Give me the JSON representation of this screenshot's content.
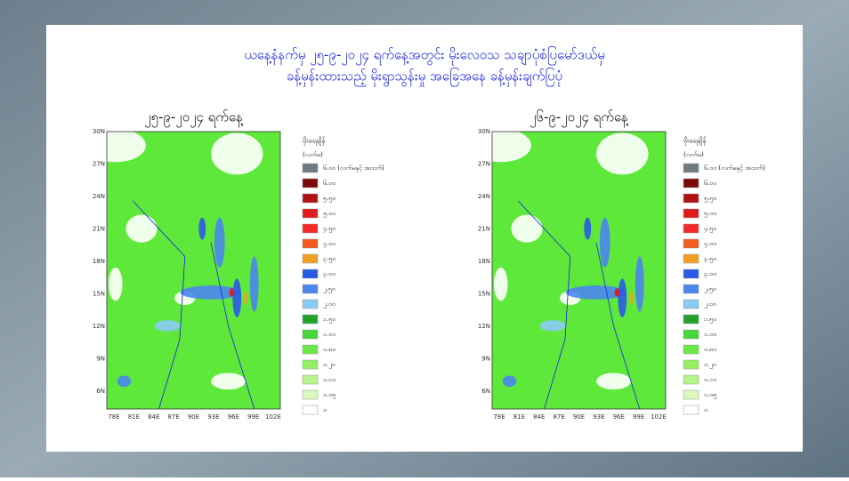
{
  "header": {
    "title_lines": [
      "ယနေ့နံနက်မှ ၂၅-၉-၂၀၂၄ ရက်နေ့အတွင်း မိုးလေဝသ သချာပုံစံပြမော်ဒယ်မှ",
      "ခန့်မှန်းထားသည့် မိုးရွာသွန်းမှု အခြေအနေ ခန့်မှန်းချက်ပြပုံ"
    ]
  },
  "maps": [
    {
      "title": "၂၅-၉-၂၀၂၄ ရက်နေ့"
    },
    {
      "title": "၂၆-၉-၂၀၂၄ ရက်နေ့"
    }
  ],
  "lat_ticks": [
    "30N",
    "27N",
    "24N",
    "21N",
    "18N",
    "15N",
    "12N",
    "9N",
    "6N"
  ],
  "lon_ticks": [
    "78E",
    "81E",
    "84E",
    "87E",
    "90E",
    "93E",
    "96E",
    "99E",
    "102E"
  ],
  "legend": {
    "title": "မိုးရေချိန်",
    "unit": "(လက်မ)",
    "items": [
      {
        "label": "၆.၀၀ (လက်မနှင့် အထက်)",
        "color": "#6e7b7f"
      },
      {
        "label": "၆.၀၀",
        "color": "#7a0a0a"
      },
      {
        "label": "၅.၅၀",
        "color": "#b01212"
      },
      {
        "label": "၅.၀၀",
        "color": "#e01a1a"
      },
      {
        "label": "၄.၅၀",
        "color": "#f22a2a"
      },
      {
        "label": "၄.၀၀",
        "color": "#f25a1e"
      },
      {
        "label": "၃.၅၀",
        "color": "#f2a024"
      },
      {
        "label": "၃.၀၀",
        "color": "#2a5be8"
      },
      {
        "label": "၂.၅၀",
        "color": "#4a86ee"
      },
      {
        "label": "၂.၀၀",
        "color": "#8ccaf6"
      },
      {
        "label": "၁.၅၀",
        "color": "#23a12a"
      },
      {
        "label": "၁.၀၀",
        "color": "#45d63a"
      },
      {
        "label": "၀.၈၀",
        "color": "#6ae848"
      },
      {
        "label": "၀.၂၀",
        "color": "#96f066"
      },
      {
        "label": "၀.၁၀",
        "color": "#b6f48c"
      },
      {
        "label": "၀.၀၅",
        "color": "#d8f8bc"
      },
      {
        "label": "၀",
        "color": "#ffffff"
      }
    ]
  }
}
